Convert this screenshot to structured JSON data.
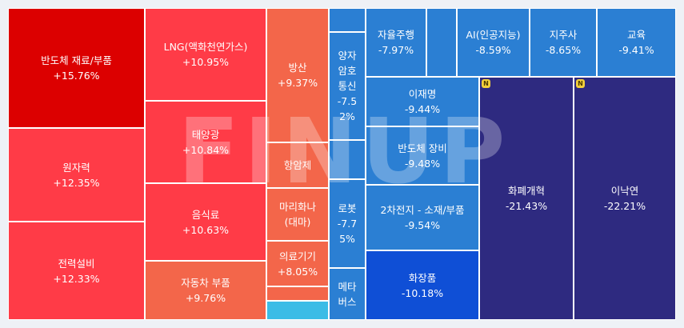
{
  "chart_data": {
    "type": "treemap",
    "tiles": [
      {
        "name": "반도체 재료/부품",
        "change": "+15.76%",
        "color": "#dc0000"
      },
      {
        "name": "원자력",
        "change": "+12.35%",
        "color": "#ff3b47"
      },
      {
        "name": "전력설비",
        "change": "+12.33%",
        "color": "#ff3b47"
      },
      {
        "name": "LNG(액화천연가스)",
        "change": "+10.95%",
        "color": "#ff3b47"
      },
      {
        "name": "태양광",
        "change": "+10.84%",
        "color": "#ff3b47"
      },
      {
        "name": "음식료",
        "change": "+10.63%",
        "color": "#ff3b47"
      },
      {
        "name": "자동차 부품",
        "change": "+9.76%",
        "color": "#f3664a"
      },
      {
        "name": "방산",
        "change": "+9.37%",
        "color": "#f3664a"
      },
      {
        "name": "항암제",
        "change": "",
        "color": "#f3664a"
      },
      {
        "name": "마리화나\n(대마)",
        "change": "",
        "color": "#f3664a"
      },
      {
        "name": "의료기기",
        "change": "+8.05%",
        "color": "#f3664a"
      },
      {
        "name": "",
        "change": "",
        "color": "#f3664a"
      },
      {
        "name": "",
        "change": "",
        "color": "#3bbce6"
      },
      {
        "name": "",
        "change": "",
        "color": "#2b7fd3"
      },
      {
        "name": "양자\n암호\n통신",
        "change": "-7.5\n2%",
        "color": "#2b7fd3"
      },
      {
        "name": "",
        "change": "",
        "color": "#2b7fd3"
      },
      {
        "name": "로봇",
        "change": "-7.7\n5%",
        "color": "#2b7fd3"
      },
      {
        "name": "메타\n버스",
        "change": "",
        "color": "#2b7fd3"
      },
      {
        "name": "자율주행",
        "change": "-7.97%",
        "color": "#2b7fd3"
      },
      {
        "name": "",
        "change": "",
        "color": "#2b7fd3"
      },
      {
        "name": "AI(인공지능)",
        "change": "-8.59%",
        "color": "#2b7fd3"
      },
      {
        "name": "지주사",
        "change": "-8.65%",
        "color": "#2b7fd3"
      },
      {
        "name": "교육",
        "change": "-9.41%",
        "color": "#2b7fd3"
      },
      {
        "name": "이재명",
        "change": "-9.44%",
        "color": "#2b7fd3"
      },
      {
        "name": "반도체 장비",
        "change": "-9.48%",
        "color": "#2b7fd3"
      },
      {
        "name": "2차전지 - 소재/부품",
        "change": "-9.54%",
        "color": "#2b7fd3"
      },
      {
        "name": "화장품",
        "change": "-10.18%",
        "color": "#0f4fd6"
      },
      {
        "name": "화폐개혁",
        "change": "-21.43%",
        "color": "#2e2a80",
        "badge": "N"
      },
      {
        "name": "이낙연",
        "change": "-22.21%",
        "color": "#2e2a80",
        "badge": "N"
      }
    ]
  },
  "watermark": "FINUP"
}
